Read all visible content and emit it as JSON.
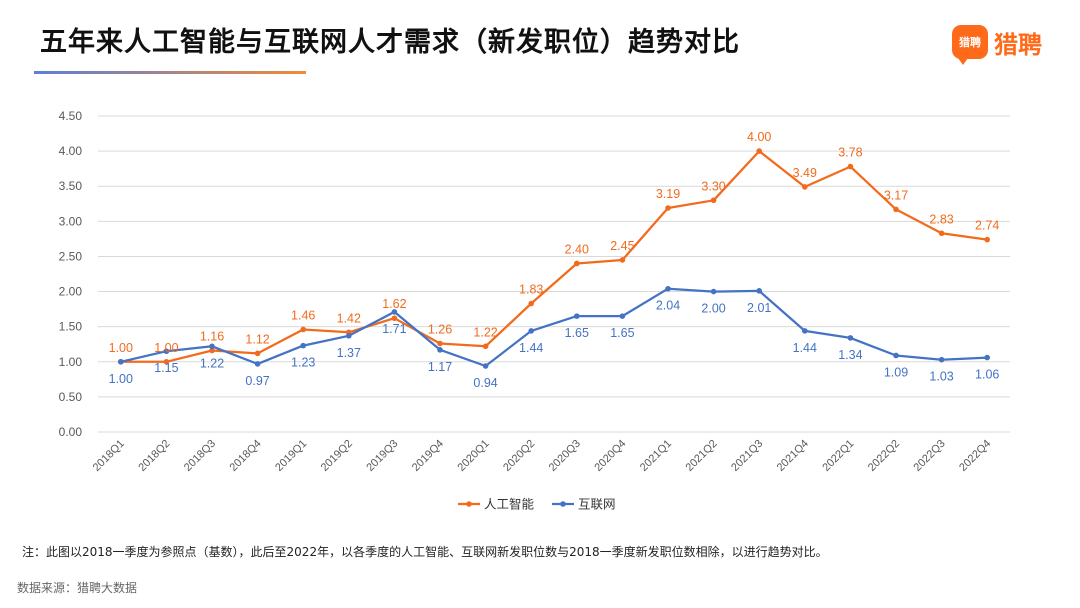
{
  "header": {
    "title": "五年来人工智能与互联网人才需求（新发职位）趋势对比",
    "logo_badge": "猎聘",
    "logo_text": "猎聘"
  },
  "footer": {
    "note": "注：此图以2018一季度为参照点（基数），此后至2022年，以各季度的人工智能、互联网新发职位数与2018一季度新发职位数相除，以进行趋势对比。",
    "source": "数据来源：猎聘大数据"
  },
  "colors": {
    "ai": "#f26b1d",
    "internet": "#4472c4",
    "grid": "#d9d9d9",
    "axis_text": "#595959",
    "brand": "#ff6a1a"
  },
  "chart_data": {
    "type": "line",
    "title": "",
    "xlabel": "",
    "ylabel": "",
    "categories": [
      "2018Q1",
      "2018Q2",
      "2018Q3",
      "2018Q4",
      "2019Q1",
      "2019Q2",
      "2019Q3",
      "2019Q4",
      "2020Q1",
      "2020Q2",
      "2020Q3",
      "2020Q4",
      "2021Q1",
      "2021Q2",
      "2021Q3",
      "2021Q4",
      "2022Q1",
      "2022Q2",
      "2022Q3",
      "2022Q4"
    ],
    "ylim": [
      0,
      4.5
    ],
    "yticks": [
      "0.00",
      "0.50",
      "1.00",
      "1.50",
      "2.00",
      "2.50",
      "3.00",
      "3.50",
      "4.00",
      "4.50"
    ],
    "grid": true,
    "legend_position": "bottom",
    "series": [
      {
        "name": "人工智能",
        "color": "#f26b1d",
        "values": [
          1.0,
          1.0,
          1.16,
          1.12,
          1.46,
          1.42,
          1.62,
          1.26,
          1.22,
          1.83,
          2.4,
          2.45,
          3.19,
          3.3,
          4.0,
          3.49,
          3.78,
          3.17,
          2.83,
          2.74
        ]
      },
      {
        "name": "互联网",
        "color": "#4472c4",
        "values": [
          1.0,
          1.15,
          1.22,
          0.97,
          1.23,
          1.37,
          1.71,
          1.17,
          0.94,
          1.44,
          1.65,
          1.65,
          2.04,
          2.0,
          2.01,
          1.44,
          1.34,
          1.09,
          1.03,
          1.06
        ]
      }
    ]
  }
}
